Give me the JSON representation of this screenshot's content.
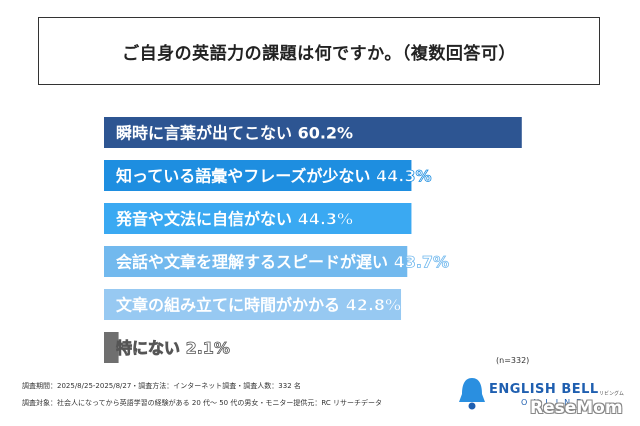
{
  "title": "ご自身の英語力の課題は何ですか。（複数回答可）",
  "chart_data": {
    "type": "bar",
    "orientation": "horizontal",
    "categories": [
      "瞬時に言葉が出てこない",
      "知っている語彙やフレーズが少ない",
      "発音や文法に自信がない",
      "会話や文章を理解するスピードが遅い",
      "文章の組み立てに時間がかかる",
      "特にない"
    ],
    "values": [
      60.2,
      44.3,
      44.3,
      43.7,
      42.8,
      2.1
    ],
    "value_labels": [
      "60.2%",
      "44.3%",
      "44.3%",
      "43.7%",
      "42.8%",
      "2.1%"
    ],
    "colors": [
      "#2d5592",
      "#1e8ee0",
      "#3aa9f2",
      "#72b9ee",
      "#97c9f2",
      "#6f6f6f"
    ],
    "grid": false,
    "legend": "none"
  },
  "note_n": "(n=332)",
  "footnotes": [
    "調査期間：2025/8/25-2025/8/27・調査方法：インターネット調査・調査人数：332 名",
    "調査対象：社会人になってから英語学習の経験がある 20 代〜 50 代の男女・モニター提供元：RC リサーチデータ"
  ],
  "brand": {
    "name": "ENGLISH BELL",
    "sub": "ONLINE",
    "kana": "リビングム"
  },
  "watermark": "ReseMom"
}
